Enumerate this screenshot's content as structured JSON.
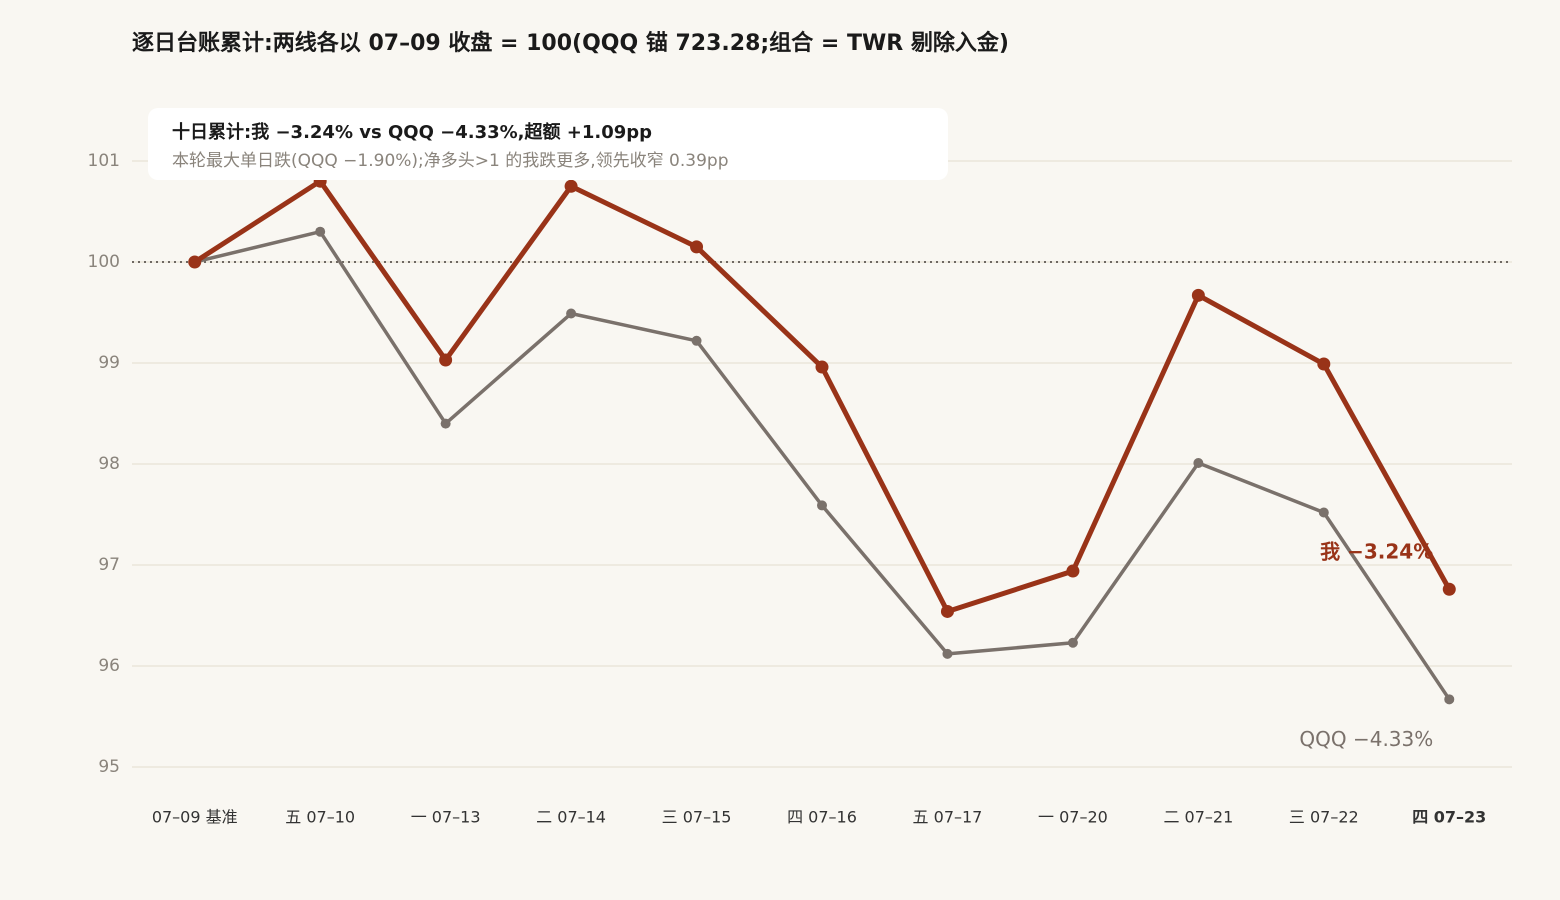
{
  "chart_data": {
    "type": "line",
    "title": "逐日台账累计:两线各以 07–09 收盘 = 100(QQQ 锚 723.28;组合 = TWR 剔除入金)",
    "annotation_title": "十日累计:我 −3.24% vs QQQ −4.33%,超额 +1.09pp",
    "annotation_text": "本轮最大单日跌(QQQ −1.90%);净多头>1 的我跌更多,领先收窄 0.39pp",
    "categories": [
      "07–09 基准",
      "五 07–10",
      "一 07–13",
      "二 07–14",
      "三 07–15",
      "四 07–16",
      "五 07–17",
      "一 07–20",
      "二 07–21",
      "三 07–22",
      "四 07–23"
    ],
    "series": [
      {
        "name": "QQQ",
        "end_label": "QQQ −4.33%",
        "color": "#7a716b",
        "values": [
          100,
          100.3,
          98.4,
          99.49,
          99.22,
          97.59,
          96.12,
          96.23,
          98.01,
          97.52,
          95.67
        ]
      },
      {
        "name": "我",
        "end_label": "我 −3.24%",
        "color": "#993318",
        "values": [
          100,
          100.8,
          99.03,
          100.75,
          100.15,
          98.96,
          96.54,
          96.94,
          99.67,
          98.99,
          96.76
        ]
      }
    ],
    "ylim": [
      95,
      101
    ],
    "yticks": [
      95,
      96,
      97,
      98,
      99,
      100,
      101
    ],
    "grid": true,
    "reference_line": 100
  }
}
